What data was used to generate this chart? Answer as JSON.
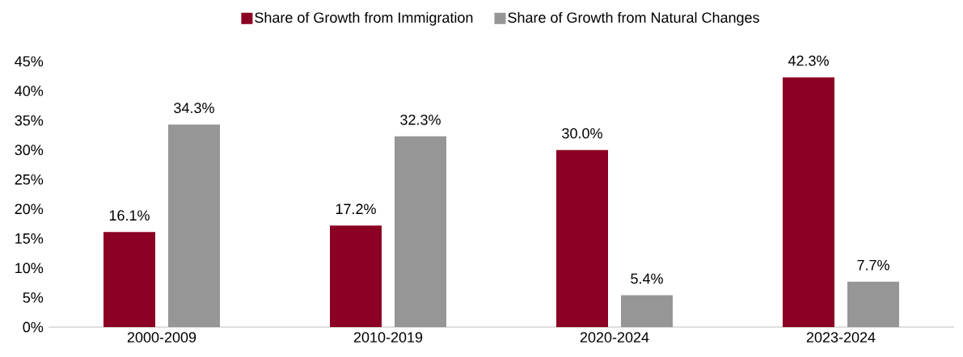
{
  "chart_data": {
    "type": "bar",
    "categories": [
      "2000-2009",
      "2010-2019",
      "2020-2024",
      "2023-2024"
    ],
    "series": [
      {
        "name": "Share of Growth from Immigration",
        "color": "#8b0023",
        "values": [
          16.1,
          17.2,
          30.0,
          42.3
        ],
        "value_labels": [
          "16.1%",
          "17.2%",
          "30.0%",
          "42.3%"
        ]
      },
      {
        "name": "Share of Growth from Natural Changes",
        "color": "#969696",
        "values": [
          34.3,
          32.3,
          5.4,
          7.7
        ],
        "value_labels": [
          "34.3%",
          "32.3%",
          "5.4%",
          "7.7%"
        ]
      }
    ],
    "ylim": [
      0,
      45
    ],
    "yticks": [
      {
        "value": 0,
        "label": "0%"
      },
      {
        "value": 5,
        "label": "5%"
      },
      {
        "value": 10,
        "label": "10%"
      },
      {
        "value": 15,
        "label": "15%"
      },
      {
        "value": 20,
        "label": "20%"
      },
      {
        "value": 25,
        "label": "25%"
      },
      {
        "value": 30,
        "label": "30%"
      },
      {
        "value": 35,
        "label": "35%"
      },
      {
        "value": 40,
        "label": "40%"
      },
      {
        "value": 45,
        "label": "45%"
      }
    ],
    "legend": "top"
  }
}
